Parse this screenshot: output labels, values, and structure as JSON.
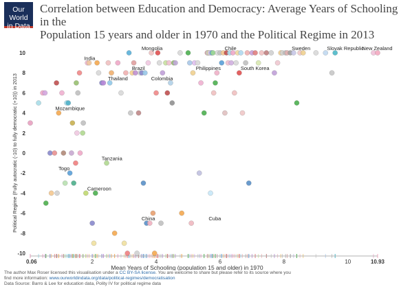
{
  "logo": {
    "line1": "Our World",
    "line2": "in Data"
  },
  "title_line1": "Correlation between Education and Democracy: Average Years of Schooling in the",
  "title_line2": "Population 15 years and older in 1970 and the Political Regime in 2013",
  "credits": {
    "line1_pre": "The author Max Roser licensed this visualisation under a ",
    "line1_link": "CC BY-SA license",
    "line1_post": ". You are welcome to share but please refer to its source where you",
    "line2_pre": "find more information: ",
    "line2_link": "www.ourworldindata.org/data/political-regimes/democratisation",
    "line3": "Data Source: Barro & Lee for education data, Polity IV for political regime data"
  },
  "chart_data": {
    "type": "scatter",
    "title": "Correlation between Education and Democracy: Average Years of Schooling in the Population 15 years and older in 1970 and the Political Regime in 2013",
    "xlabel": "Mean Years of Schooling (population 15 and older) in 1970",
    "ylabel": "Political Regime (Fully autocratic (-10) to fully democratic (+10)) in 2013",
    "xlim": [
      0.06,
      10.93
    ],
    "ylim": [
      -10,
      10
    ],
    "x_ticks": [
      "0.06",
      "2",
      "4",
      "6",
      "8",
      "10",
      "10.93"
    ],
    "x_tick_values": [
      0.06,
      2,
      4,
      6,
      8,
      10,
      10.93
    ],
    "y_ticks": [
      -10,
      -8,
      -6,
      -4,
      -2,
      0,
      2,
      4,
      6,
      8,
      10
    ],
    "grid": false,
    "labels": [
      {
        "text": "India",
        "x": 1.7,
        "y": 9
      },
      {
        "text": "Mongolia",
        "x": 3.5,
        "y": 10
      },
      {
        "text": "Chile",
        "x": 6.1,
        "y": 10
      },
      {
        "text": "Sweden",
        "x": 8.2,
        "y": 10
      },
      {
        "text": "Slovak Republic",
        "x": 9.3,
        "y": 10
      },
      {
        "text": "New Zealand",
        "x": 10.4,
        "y": 10
      },
      {
        "text": "Brazil",
        "x": 3.2,
        "y": 8
      },
      {
        "text": "Philippines",
        "x": 5.2,
        "y": 8
      },
      {
        "text": "South Korea",
        "x": 6.6,
        "y": 8
      },
      {
        "text": "Thailand",
        "x": 2.45,
        "y": 7
      },
      {
        "text": "Colombia",
        "x": 3.8,
        "y": 7
      },
      {
        "text": "Mozambique",
        "x": 0.8,
        "y": 4
      },
      {
        "text": "Tanzania",
        "x": 2.25,
        "y": -1
      },
      {
        "text": "Togo",
        "x": 0.9,
        "y": -2
      },
      {
        "text": "Cameroon",
        "x": 1.8,
        "y": -4
      },
      {
        "text": "China",
        "x": 3.5,
        "y": -7
      },
      {
        "text": "Cuba",
        "x": 5.6,
        "y": -7
      }
    ],
    "points": [
      {
        "x": 0.06,
        "y": 3,
        "c": "#e8a0c0"
      },
      {
        "x": 0.32,
        "y": 5,
        "c": "#a8dde8"
      },
      {
        "x": 0.45,
        "y": 6,
        "c": "#f0a8c8"
      },
      {
        "x": 0.52,
        "y": 6,
        "c": "#d4a8e0"
      },
      {
        "x": 0.55,
        "y": -5,
        "c": "#4cae4c"
      },
      {
        "x": 0.68,
        "y": 0,
        "c": "#8888cc"
      },
      {
        "x": 0.72,
        "y": -4,
        "c": "#f4c890"
      },
      {
        "x": 0.82,
        "y": 0,
        "c": "#e89090"
      },
      {
        "x": 0.88,
        "y": 7,
        "c": "#c05050"
      },
      {
        "x": 0.9,
        "y": -4,
        "c": "#d0d0d0"
      },
      {
        "x": 0.95,
        "y": 4,
        "c": "#f4a850"
      },
      {
        "x": 1.05,
        "y": 6,
        "c": "#f0b0d0"
      },
      {
        "x": 1.1,
        "y": 0,
        "c": "#b08878"
      },
      {
        "x": 1.15,
        "y": -3,
        "c": "#b8e0b0"
      },
      {
        "x": 1.2,
        "y": 5,
        "c": "#a8e0f0"
      },
      {
        "x": 1.25,
        "y": 5,
        "c": "#50b0c8"
      },
      {
        "x": 1.3,
        "y": -2,
        "c": "#5aa0d8"
      },
      {
        "x": 1.35,
        "y": 0,
        "c": "#c8a8d0"
      },
      {
        "x": 1.38,
        "y": 3,
        "c": "#c8b050"
      },
      {
        "x": 1.42,
        "y": -3,
        "c": "#4caf8c"
      },
      {
        "x": 1.48,
        "y": -1,
        "c": "#f08080"
      },
      {
        "x": 1.5,
        "y": 7,
        "c": "#98c070"
      },
      {
        "x": 1.52,
        "y": 2,
        "c": "#f0c8e0"
      },
      {
        "x": 1.55,
        "y": 6,
        "c": "#c0c0c0"
      },
      {
        "x": 1.6,
        "y": 8,
        "c": "#f08888"
      },
      {
        "x": 1.62,
        "y": 0,
        "c": "#f0a8c8"
      },
      {
        "x": 1.7,
        "y": 2,
        "c": "#b0d890"
      },
      {
        "x": 1.72,
        "y": 3,
        "c": "#c0c0c0"
      },
      {
        "x": 1.8,
        "y": -4,
        "c": "#c0d870"
      },
      {
        "x": 1.85,
        "y": 9,
        "c": "#f0b8d0"
      },
      {
        "x": 1.9,
        "y": 9,
        "c": "#f0c8a0"
      },
      {
        "x": 2.0,
        "y": -7,
        "c": "#8888cc"
      },
      {
        "x": 2.05,
        "y": -9,
        "c": "#f0e0a0"
      },
      {
        "x": 2.1,
        "y": -4,
        "c": "#4caf50"
      },
      {
        "x": 2.15,
        "y": 9,
        "c": "#f4a850"
      },
      {
        "x": 2.2,
        "y": 8,
        "c": "#d8d8d8"
      },
      {
        "x": 2.3,
        "y": 7,
        "c": "#8888cc"
      },
      {
        "x": 2.35,
        "y": 7,
        "c": "#b888d8"
      },
      {
        "x": 2.45,
        "y": -1,
        "c": "#b0d890"
      },
      {
        "x": 2.5,
        "y": 9,
        "c": "#f0c0c0"
      },
      {
        "x": 2.55,
        "y": 7,
        "c": "#90c8e8"
      },
      {
        "x": 2.6,
        "y": 8,
        "c": "#f0b070"
      },
      {
        "x": 2.7,
        "y": -8,
        "c": "#f4a850"
      },
      {
        "x": 2.8,
        "y": 9,
        "c": "#f0a8c8"
      },
      {
        "x": 2.9,
        "y": 6,
        "c": "#d8d8d8"
      },
      {
        "x": 3.0,
        "y": -9,
        "c": "#f0e0a0"
      },
      {
        "x": 3.05,
        "y": 8,
        "c": "#f0b0b0"
      },
      {
        "x": 3.1,
        "y": -10,
        "c": "#f08080"
      },
      {
        "x": 3.15,
        "y": 10,
        "c": "#5ab0d8"
      },
      {
        "x": 3.2,
        "y": 4,
        "c": "#c8c8c8"
      },
      {
        "x": 3.25,
        "y": 8,
        "c": "#f4d090"
      },
      {
        "x": 3.3,
        "y": 9,
        "c": "#e0a0a0"
      },
      {
        "x": 3.35,
        "y": 8,
        "c": "#c090d0"
      },
      {
        "x": 3.4,
        "y": -10,
        "c": "#d0d0d0"
      },
      {
        "x": 3.45,
        "y": 4,
        "c": "#c08888"
      },
      {
        "x": 3.5,
        "y": 8,
        "c": "#d8d8d8"
      },
      {
        "x": 3.55,
        "y": 8,
        "c": "#8888cc"
      },
      {
        "x": 3.6,
        "y": -3,
        "c": "#5a90c8"
      },
      {
        "x": 3.65,
        "y": 8,
        "c": "#98c8e8"
      },
      {
        "x": 3.7,
        "y": -7,
        "c": "#5a90c8"
      },
      {
        "x": 3.75,
        "y": 9,
        "c": "#f0c8e0"
      },
      {
        "x": 3.8,
        "y": -7,
        "c": "#f0b0c0"
      },
      {
        "x": 3.85,
        "y": 10,
        "c": "#f0c0c0"
      },
      {
        "x": 3.9,
        "y": -6,
        "c": "#e8a070"
      },
      {
        "x": 3.95,
        "y": -10,
        "c": "#f4a850"
      },
      {
        "x": 4.0,
        "y": 6,
        "c": "#f08888"
      },
      {
        "x": 4.05,
        "y": 10,
        "c": "#e05050"
      },
      {
        "x": 4.1,
        "y": 9,
        "c": "#d8d8d8"
      },
      {
        "x": 4.15,
        "y": -7,
        "c": "#c0c0c0"
      },
      {
        "x": 4.2,
        "y": 8,
        "c": "#c0a0d8"
      },
      {
        "x": 4.3,
        "y": 9,
        "c": "#c8e0a0"
      },
      {
        "x": 4.35,
        "y": 6,
        "c": "#c05050"
      },
      {
        "x": 4.4,
        "y": 9,
        "c": "#f0c0d0"
      },
      {
        "x": 4.45,
        "y": 7,
        "c": "#b0d0e8"
      },
      {
        "x": 4.5,
        "y": 5,
        "c": "#909090"
      },
      {
        "x": 4.55,
        "y": 9,
        "c": "#98c070"
      },
      {
        "x": 4.6,
        "y": 9,
        "c": "#c0a8d8"
      },
      {
        "x": 4.75,
        "y": 10,
        "c": "#d8d8d8"
      },
      {
        "x": 4.8,
        "y": -6,
        "c": "#f4a850"
      },
      {
        "x": 5.0,
        "y": 10,
        "c": "#4caf50"
      },
      {
        "x": 5.05,
        "y": 9,
        "c": "#a8c8e8"
      },
      {
        "x": 5.1,
        "y": -7,
        "c": "#f0b8c0"
      },
      {
        "x": 5.15,
        "y": 8,
        "c": "#f0d090"
      },
      {
        "x": 5.2,
        "y": 9,
        "c": "#e0c0f0"
      },
      {
        "x": 5.3,
        "y": 9,
        "c": "#d8d8d8"
      },
      {
        "x": 5.35,
        "y": -2,
        "c": "#c0c0e0"
      },
      {
        "x": 5.4,
        "y": 7,
        "c": "#f0b0d0"
      },
      {
        "x": 5.5,
        "y": 4,
        "c": "#4caf50"
      },
      {
        "x": 5.6,
        "y": 10,
        "c": "#f08888"
      },
      {
        "x": 5.62,
        "y": 10,
        "c": "#c0e8f0"
      },
      {
        "x": 5.65,
        "y": 10,
        "c": "#f0d090"
      },
      {
        "x": 5.68,
        "y": 10,
        "c": "#d8d8f0"
      },
      {
        "x": 5.7,
        "y": -4,
        "c": "#c8e8f8"
      },
      {
        "x": 5.72,
        "y": 10,
        "c": "#d8b8e8"
      },
      {
        "x": 5.75,
        "y": 10,
        "c": "#5ab0d8"
      },
      {
        "x": 5.78,
        "y": 10,
        "c": "#a0d890"
      },
      {
        "x": 5.8,
        "y": 6,
        "c": "#f0c0c0"
      },
      {
        "x": 5.85,
        "y": 7,
        "c": "#4caf50"
      },
      {
        "x": 5.9,
        "y": 8,
        "c": "#f0b0c8"
      },
      {
        "x": 5.92,
        "y": 10,
        "c": "#d8d8d8"
      },
      {
        "x": 6.0,
        "y": 10,
        "c": "#c0c0c0"
      },
      {
        "x": 6.05,
        "y": 9,
        "c": "#5aa0d8"
      },
      {
        "x": 6.1,
        "y": 10,
        "c": "#f4c890"
      },
      {
        "x": 6.15,
        "y": 4,
        "c": "#e0c0c0"
      },
      {
        "x": 6.2,
        "y": 10,
        "c": "#c05050"
      },
      {
        "x": 6.25,
        "y": 9,
        "c": "#f0c0d0"
      },
      {
        "x": 6.3,
        "y": 10,
        "c": "#a8d8e8"
      },
      {
        "x": 6.35,
        "y": 9,
        "c": "#d0b0e0"
      },
      {
        "x": 6.4,
        "y": 10,
        "c": "#f0a8c8"
      },
      {
        "x": 6.45,
        "y": 6,
        "c": "#f0c0c0"
      },
      {
        "x": 6.5,
        "y": 9,
        "c": "#d8d8d8"
      },
      {
        "x": 6.55,
        "y": 10,
        "c": "#f0d8a0"
      },
      {
        "x": 6.6,
        "y": 8,
        "c": "#e05050"
      },
      {
        "x": 6.65,
        "y": 10,
        "c": "#b0d8f0"
      },
      {
        "x": 6.7,
        "y": 4,
        "c": "#f0c8c8"
      },
      {
        "x": 6.8,
        "y": 9,
        "c": "#c0c0c0"
      },
      {
        "x": 6.85,
        "y": 10,
        "c": "#f0b0b0"
      },
      {
        "x": 6.9,
        "y": -3,
        "c": "#5a90c8"
      },
      {
        "x": 7.0,
        "y": 10,
        "c": "#c8a0d8"
      },
      {
        "x": 7.1,
        "y": 10,
        "c": "#e08080"
      },
      {
        "x": 7.2,
        "y": 9,
        "c": "#d8e8b0"
      },
      {
        "x": 7.3,
        "y": 10,
        "c": "#f0c0c0"
      },
      {
        "x": 7.45,
        "y": 10,
        "c": "#c08080"
      },
      {
        "x": 7.6,
        "y": 10,
        "c": "#d0d0d0"
      },
      {
        "x": 7.7,
        "y": 8,
        "c": "#c0a0d8"
      },
      {
        "x": 7.8,
        "y": 9,
        "c": "#f0c8d0"
      },
      {
        "x": 7.9,
        "y": 10,
        "c": "#f4d090"
      },
      {
        "x": 7.95,
        "y": 10,
        "c": "#d0d0d0"
      },
      {
        "x": 8.05,
        "y": 10,
        "c": "#c0c0c0"
      },
      {
        "x": 8.1,
        "y": 10,
        "c": "#e0b0b0"
      },
      {
        "x": 8.2,
        "y": 10,
        "c": "#a0a0a0"
      },
      {
        "x": 8.3,
        "y": 10,
        "c": "#c8c8e8"
      },
      {
        "x": 8.4,
        "y": 5,
        "c": "#4caf50"
      },
      {
        "x": 8.5,
        "y": 10,
        "c": "#f0c8c8"
      },
      {
        "x": 8.6,
        "y": 10,
        "c": "#f0d090"
      },
      {
        "x": 9.0,
        "y": 10,
        "c": "#d8d8d8"
      },
      {
        "x": 9.3,
        "y": 10,
        "c": "#c0d8f0"
      },
      {
        "x": 9.5,
        "y": 8,
        "c": "#c8c8c8"
      },
      {
        "x": 9.6,
        "y": 10,
        "c": "#4cb8c8"
      },
      {
        "x": 10.8,
        "y": 10,
        "c": "#f0c0d8"
      },
      {
        "x": 10.93,
        "y": 10,
        "c": "#f4a8c0"
      }
    ]
  }
}
